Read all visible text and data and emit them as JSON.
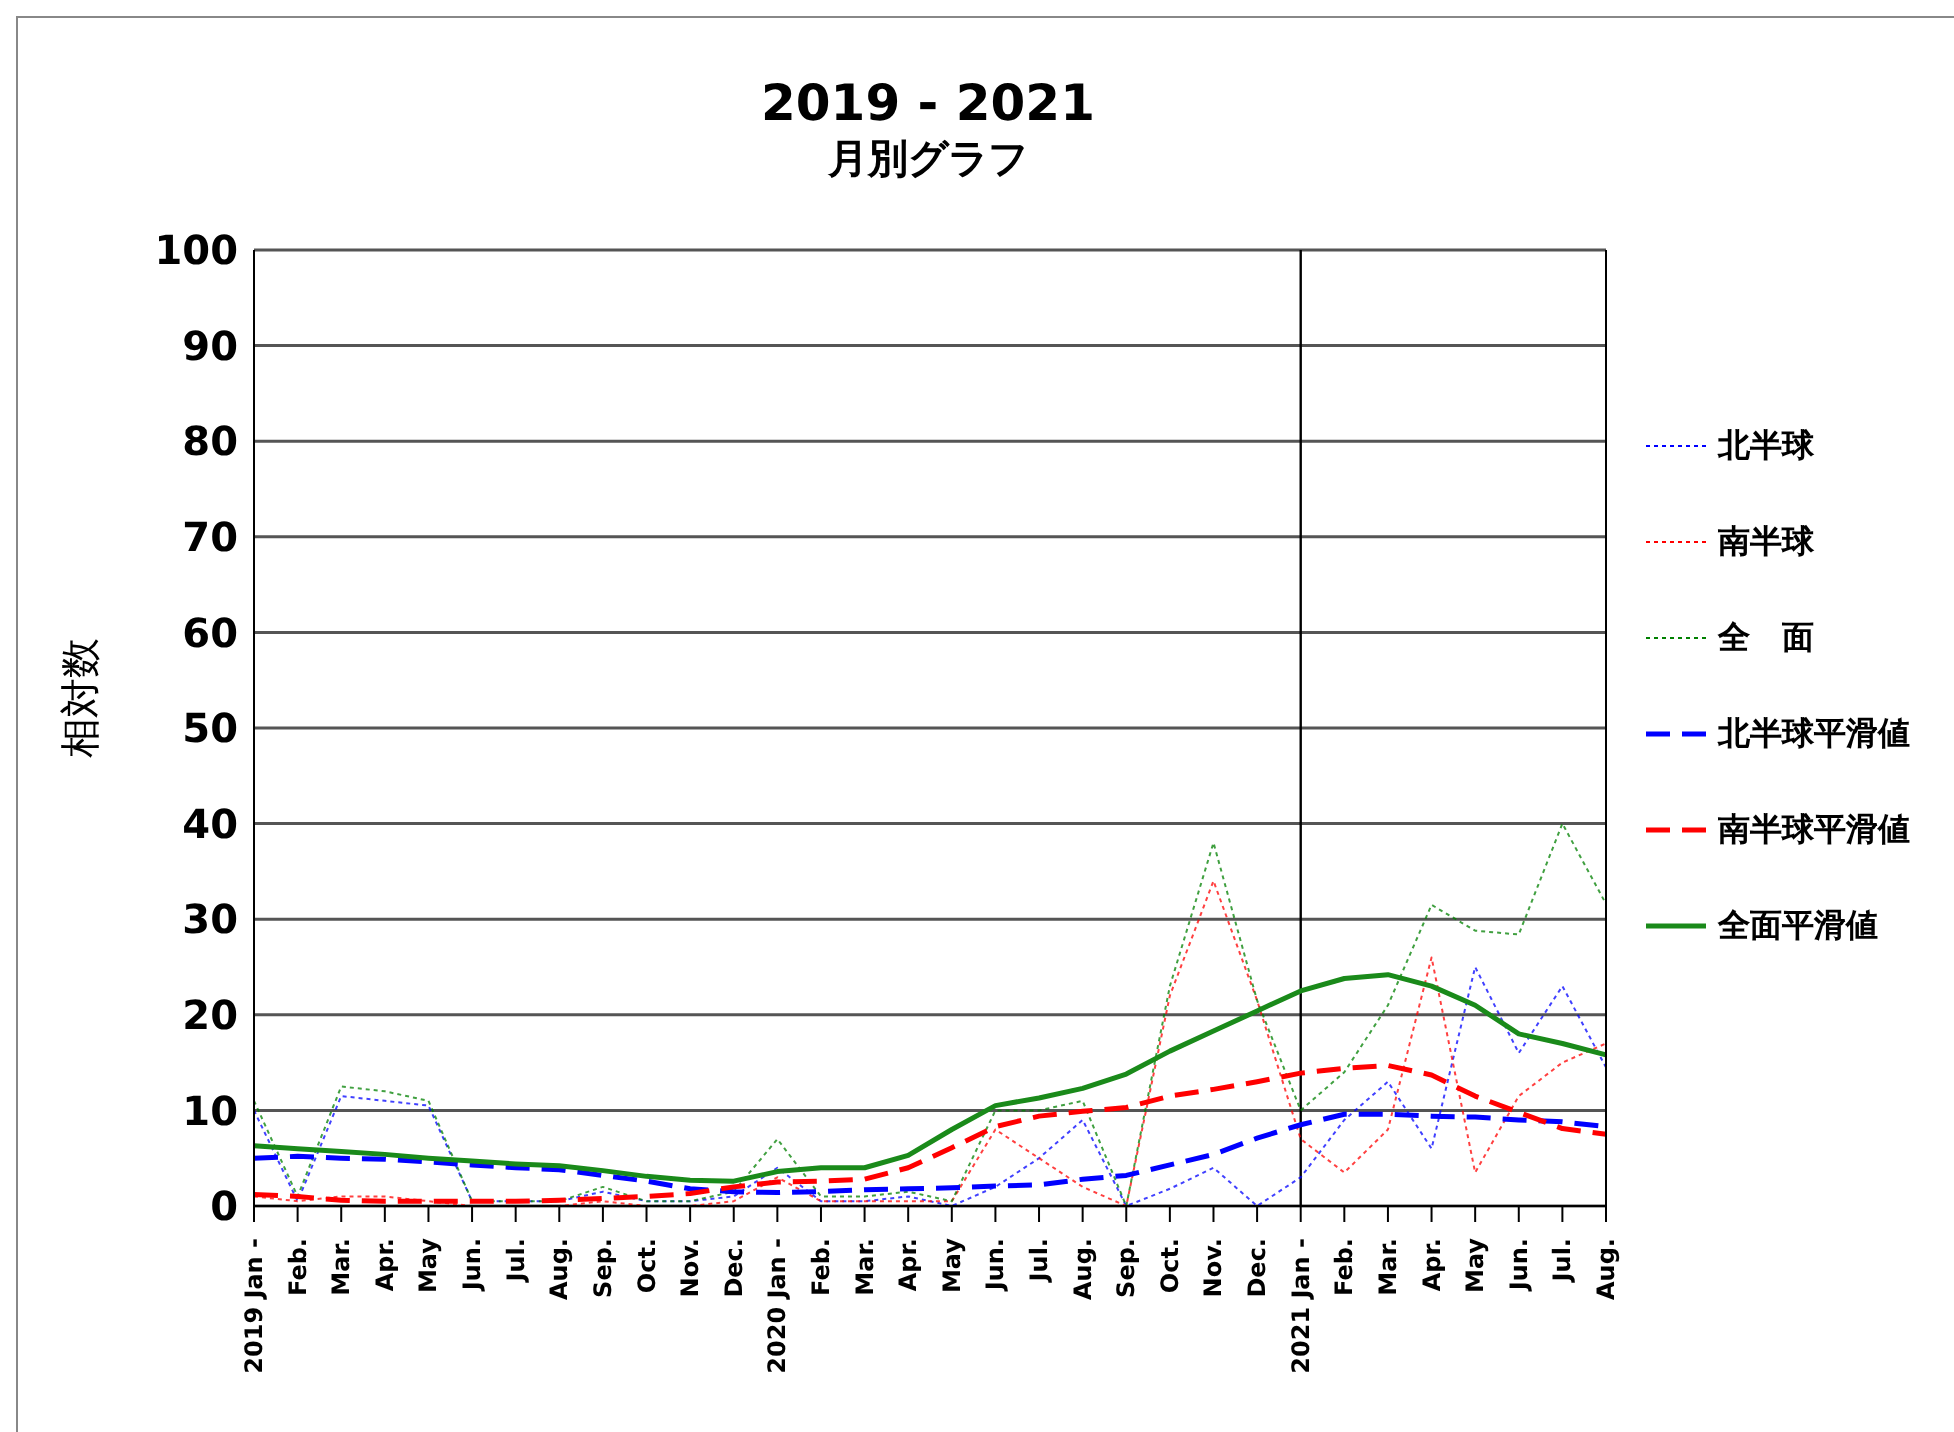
{
  "chart_data": {
    "type": "line",
    "title": "2019 - 2021",
    "subtitle": "月別グラフ",
    "ylabel": "相対数",
    "categories": [
      "2019 Jan -",
      "Feb.",
      "Mar.",
      "Apr.",
      "May",
      "Jun.",
      "Jul.",
      "Aug.",
      "Sep.",
      "Oct.",
      "Nov.",
      "Dec.",
      "2020 Jan -",
      "Feb.",
      "Mar.",
      "Apr.",
      "May",
      "Jun.",
      "Jul.",
      "Aug.",
      "Sep.",
      "Oct.",
      "Nov.",
      "Dec.",
      "2021 Jan -",
      "Feb.",
      "Mar.",
      "Apr.",
      "May",
      "Jun.",
      "Jul.",
      "Aug."
    ],
    "series": [
      {
        "name": "北半球",
        "color": "#0000ff",
        "line_style": "dotted",
        "values": [
          10,
          0.5,
          11.5,
          11,
          10.5,
          0.5,
          0.5,
          0.5,
          1.5,
          0.5,
          0.5,
          1,
          4,
          0.5,
          0.5,
          1,
          0,
          2,
          5,
          9,
          0,
          1.8,
          4,
          0,
          3,
          9,
          13,
          6,
          25,
          16,
          23,
          14.5
        ]
      },
      {
        "name": "南半球",
        "color": "#ff0000",
        "line_style": "dotted",
        "values": [
          1,
          0.5,
          1,
          1,
          0.5,
          0,
          0,
          0,
          0.5,
          0,
          0,
          0.5,
          3,
          0.5,
          0.5,
          0.5,
          0.5,
          8,
          5,
          2,
          0,
          22,
          34,
          21.5,
          7,
          3.5,
          8,
          26,
          3.5,
          11.5,
          15,
          17
        ]
      },
      {
        "name": "全　面",
        "color": "#008000",
        "line_style": "dotted",
        "values": [
          11,
          1,
          12.5,
          12,
          11,
          0.5,
          0.5,
          0.5,
          2,
          0.5,
          0.5,
          1.5,
          7,
          1,
          1,
          1.5,
          0.5,
          10,
          10,
          11,
          0,
          23,
          38,
          21.5,
          10,
          14,
          21,
          31.5,
          28.8,
          28.4,
          40,
          31.6
        ]
      },
      {
        "name": "北半球平滑値",
        "color": "#0000ff",
        "line_style": "dashed",
        "values": [
          5,
          5.2,
          5,
          4.9,
          4.6,
          4.3,
          4,
          3.8,
          3.2,
          2.6,
          1.8,
          1.5,
          1.4,
          1.5,
          1.7,
          1.8,
          1.9,
          2.1,
          2.2,
          2.8,
          3.2,
          4.3,
          5.4,
          7.1,
          8.5,
          9.6,
          9.6,
          9.4,
          9.3,
          9,
          8.8,
          8.3
        ]
      },
      {
        "name": "南半球平滑値",
        "color": "#ff0000",
        "line_style": "dashed",
        "values": [
          1.2,
          1,
          0.6,
          0.5,
          0.5,
          0.5,
          0.5,
          0.6,
          0.8,
          1,
          1.3,
          2,
          2.5,
          2.6,
          2.8,
          4,
          6.1,
          8.3,
          9.4,
          9.9,
          10.3,
          11.5,
          12.2,
          13,
          13.9,
          14.4,
          14.7,
          13.7,
          11.5,
          9.8,
          8.1,
          7.5
        ]
      },
      {
        "name": "全面平滑値",
        "color": "#1a8a1a",
        "line_style": "solid",
        "values": [
          6.3,
          6,
          5.7,
          5.4,
          5,
          4.7,
          4.4,
          4.2,
          3.7,
          3.1,
          2.7,
          2.6,
          3.6,
          4,
          4,
          5.3,
          8,
          10.5,
          11.3,
          12.3,
          13.8,
          16.2,
          18.3,
          20.4,
          22.5,
          23.8,
          24.2,
          23,
          21,
          18,
          17,
          15.8
        ]
      }
    ],
    "ylim": [
      0,
      100
    ],
    "yticks": [
      0,
      10,
      20,
      30,
      40,
      50,
      60,
      70,
      80,
      90,
      100
    ],
    "ref_lines": [
      {
        "axis": "x",
        "value": "2021 Jan -",
        "color": "#000000"
      }
    ],
    "grid": "y",
    "legend": "right"
  }
}
